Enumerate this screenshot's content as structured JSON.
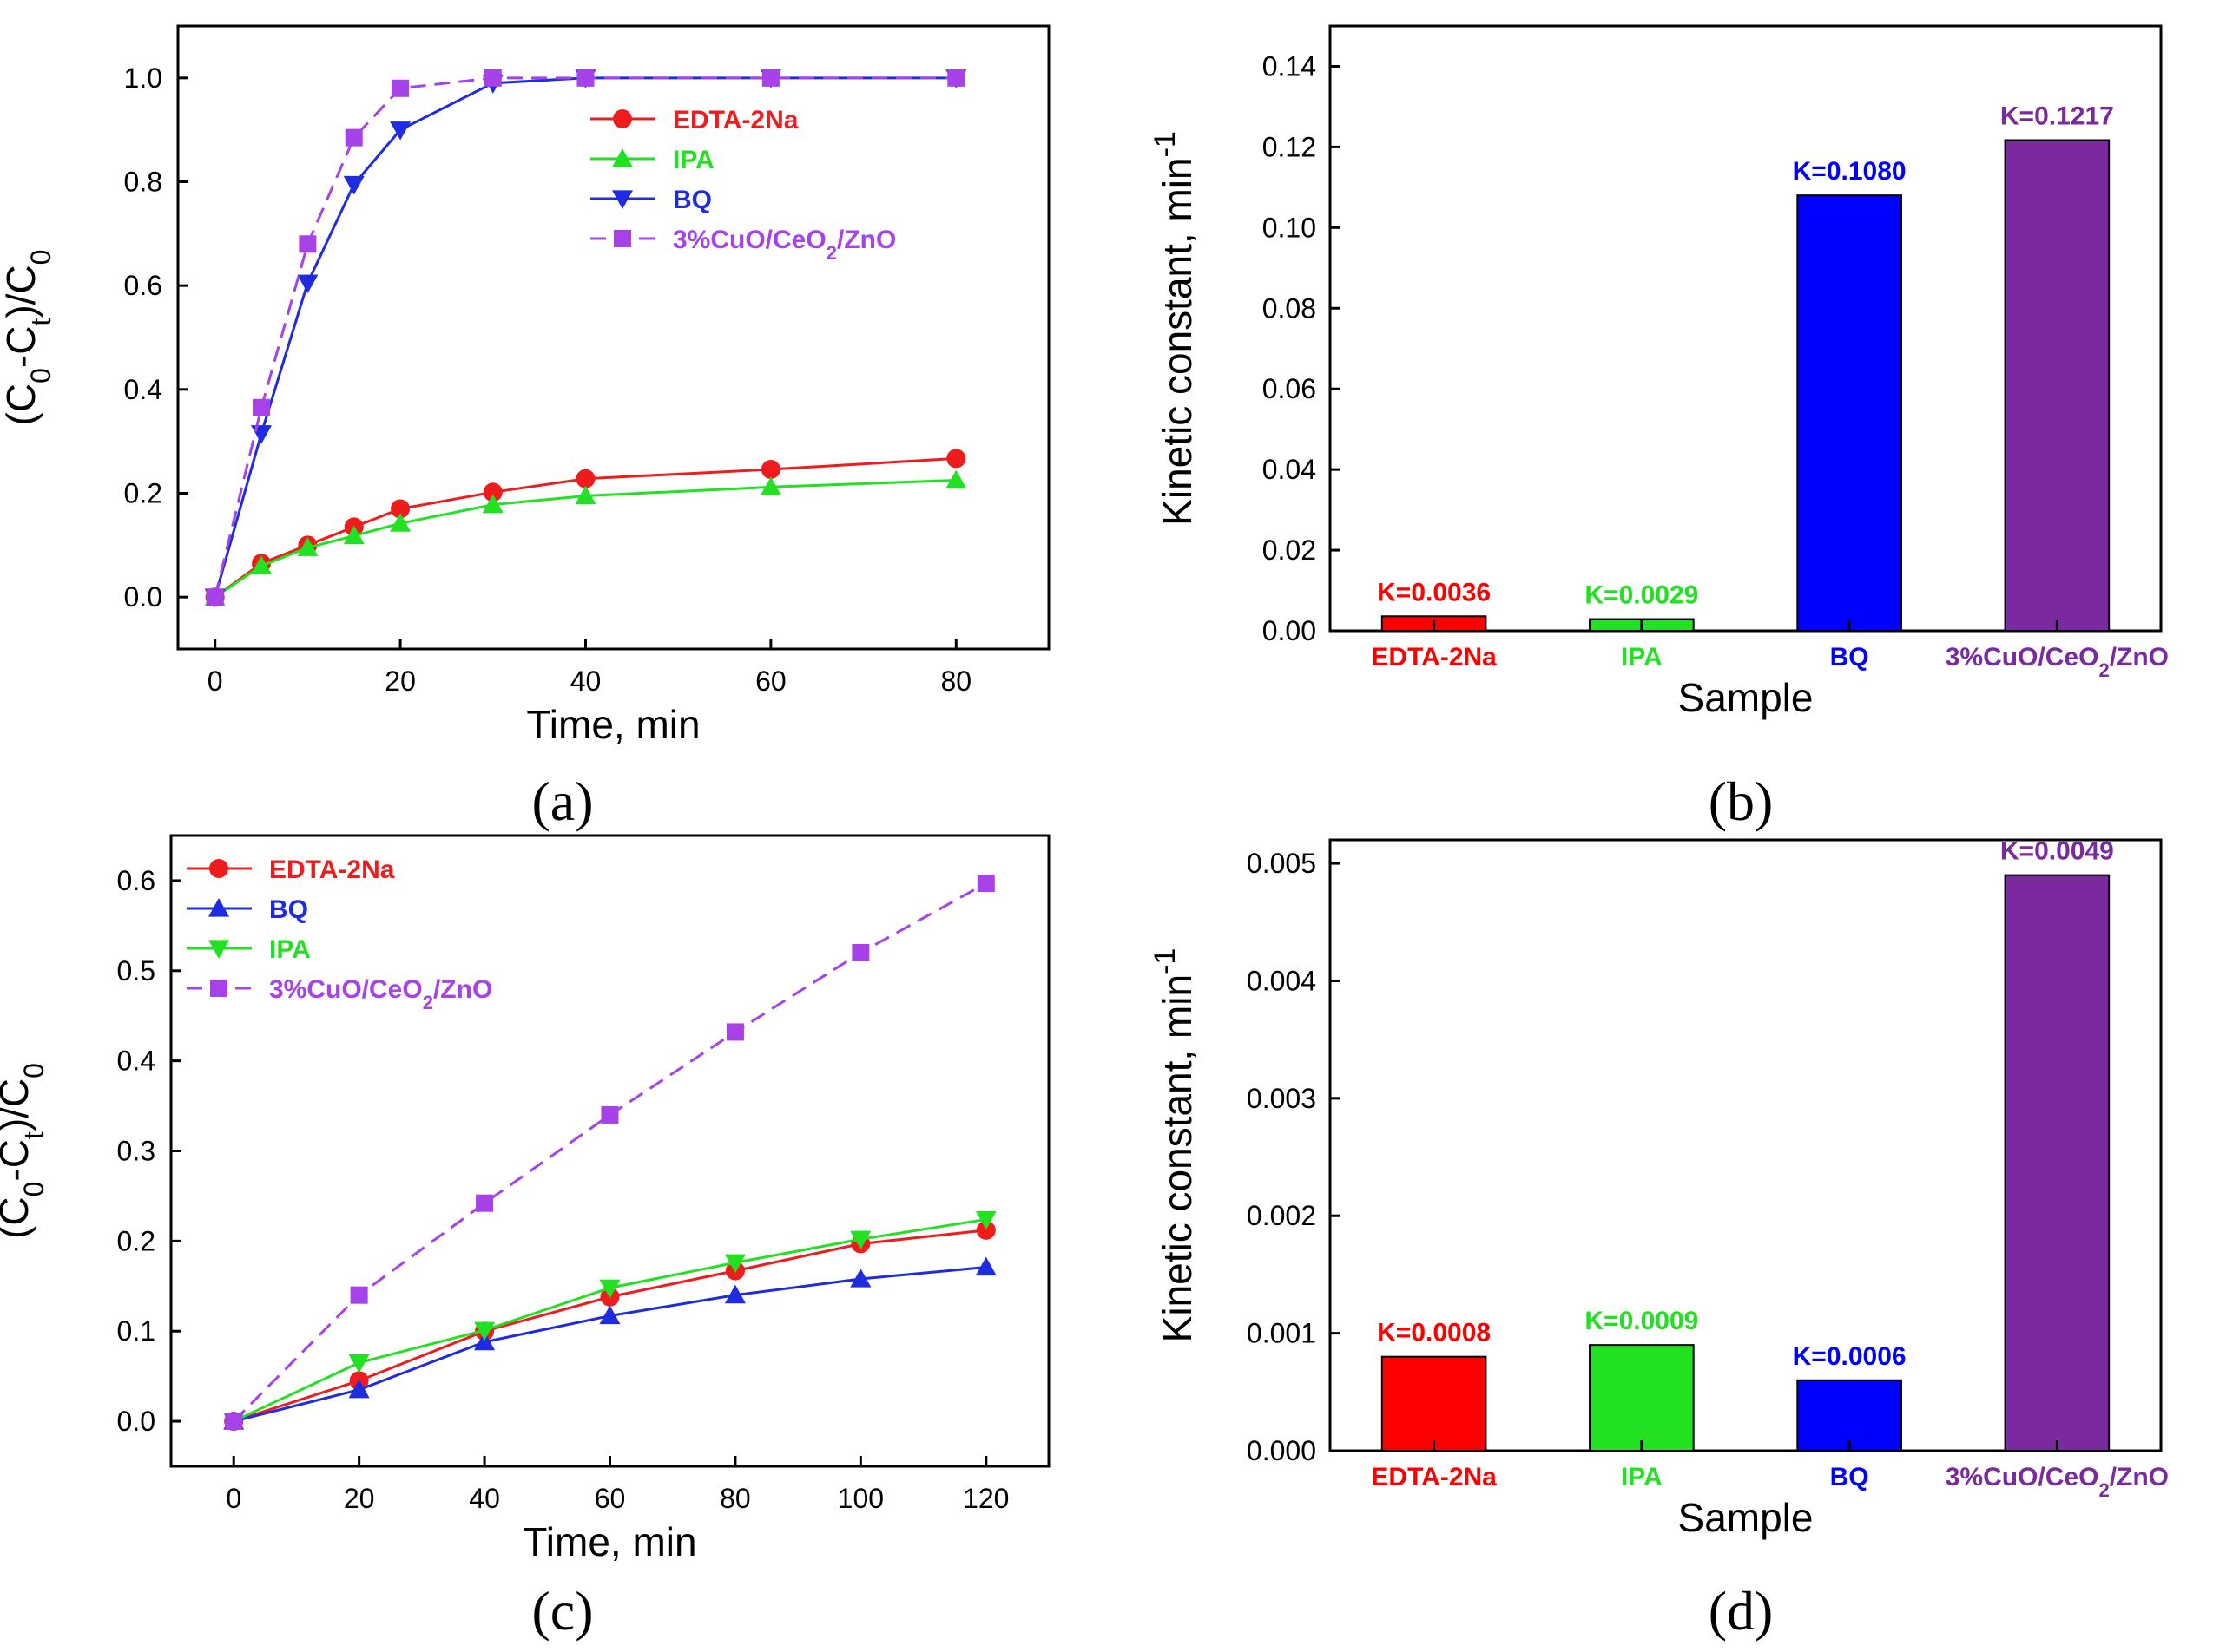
{
  "chart_data": [
    {
      "panel": "(a)",
      "type": "line",
      "xlabel": "Time, min",
      "ylabel_main": "(C",
      "ylabel_sub0": "0",
      "ylabel_mid": "-C",
      "ylabel_subt": "t",
      "ylabel_close": ")/C",
      "ylabel_sub0b": "0",
      "xlim": [
        -4,
        90
      ],
      "ylim": [
        -0.1,
        1.1
      ],
      "xticks": [
        0,
        20,
        40,
        60,
        80
      ],
      "yticks": [
        0.0,
        0.2,
        0.4,
        0.6,
        0.8,
        1.0
      ],
      "xtick_labels": [
        "0",
        "20",
        "40",
        "60",
        "80"
      ],
      "ytick_labels": [
        "0.0",
        "0.2",
        "0.4",
        "0.6",
        "0.8",
        "1.0"
      ],
      "series": [
        {
          "name": "EDTA-2Na",
          "color": "#ee1c1c",
          "marker": "circle",
          "dash": false,
          "x": [
            0,
            5,
            10,
            15,
            20,
            30,
            40,
            60,
            80
          ],
          "y": [
            0.0,
            0.065,
            0.1,
            0.135,
            0.17,
            0.202,
            0.228,
            0.246,
            0.267
          ]
        },
        {
          "name": "IPA",
          "color": "#22e022",
          "marker": "triangle-up",
          "dash": false,
          "x": [
            0,
            5,
            10,
            15,
            20,
            30,
            40,
            60,
            80
          ],
          "y": [
            0.0,
            0.06,
            0.095,
            0.118,
            0.142,
            0.178,
            0.195,
            0.212,
            0.225
          ]
        },
        {
          "name": "BQ",
          "color": "#1e2be0",
          "marker": "triangle-down",
          "dash": false,
          "x": [
            0,
            5,
            10,
            15,
            20,
            30,
            40,
            60,
            80
          ],
          "y": [
            0.0,
            0.315,
            0.605,
            0.795,
            0.9,
            0.99,
            1.0,
            1.0,
            1.0
          ]
        },
        {
          "name": "3%CuO/CeO2/ZnO",
          "label_pre": "3%CuO/CeO",
          "label_sub": "2",
          "label_post": "/ZnO",
          "color": "#a642e8",
          "marker": "square",
          "dash": true,
          "x": [
            0,
            5,
            10,
            15,
            20,
            30,
            40,
            60,
            80
          ],
          "y": [
            0.0,
            0.365,
            0.68,
            0.885,
            0.98,
            1.0,
            1.0,
            1.0,
            1.0
          ]
        }
      ],
      "legend_order": [
        0,
        1,
        2,
        3
      ],
      "legend_position": "top-right"
    },
    {
      "panel": "(b)",
      "type": "bar",
      "xlabel": "Sample",
      "ylabel": "Kinetic constant, min",
      "ylabel_sup": "-1",
      "ylim": [
        0,
        0.15
      ],
      "yticks": [
        0.0,
        0.02,
        0.04,
        0.06,
        0.08,
        0.1,
        0.12,
        0.14
      ],
      "ytick_labels": [
        "0.00",
        "0.02",
        "0.04",
        "0.06",
        "0.08",
        "0.10",
        "0.12",
        "0.14"
      ],
      "categories": [
        "EDTA-2Na",
        "IPA",
        "BQ",
        "3%CuO/CeO2/ZnO"
      ],
      "category_labels": [
        {
          "pre": "EDTA-2Na",
          "sub": "",
          "post": ""
        },
        {
          "pre": "IPA",
          "sub": "",
          "post": ""
        },
        {
          "pre": "BQ",
          "sub": "",
          "post": ""
        },
        {
          "pre": "3%CuO/CeO",
          "sub": "2",
          "post": "/ZnO"
        }
      ],
      "values": [
        0.0036,
        0.0029,
        0.108,
        0.1217
      ],
      "value_labels": [
        "K=0.0036",
        "K=0.0029",
        "K=0.1080",
        "K=0.1217"
      ],
      "colors": [
        "#ff0000",
        "#22e022",
        "#0000ff",
        "#7a2a9e"
      ]
    },
    {
      "panel": "(c)",
      "type": "line",
      "xlabel": "Time, min",
      "ylabel_main": "(C",
      "ylabel_sub0": "0",
      "ylabel_mid": "-C",
      "ylabel_subt": "t",
      "ylabel_close": ")/C",
      "ylabel_sub0b": "0",
      "xlim": [
        -10,
        130
      ],
      "ylim": [
        -0.05,
        0.65
      ],
      "xticks": [
        0,
        20,
        40,
        60,
        80,
        100,
        120
      ],
      "yticks": [
        0.0,
        0.1,
        0.2,
        0.3,
        0.4,
        0.5,
        0.6
      ],
      "xtick_labels": [
        "0",
        "20",
        "40",
        "60",
        "80",
        "100",
        "120"
      ],
      "ytick_labels": [
        "0.0",
        "0.1",
        "0.2",
        "0.3",
        "0.4",
        "0.5",
        "0.6"
      ],
      "series": [
        {
          "name": "EDTA-2Na",
          "color": "#ee1c1c",
          "marker": "circle",
          "dash": false,
          "x": [
            0,
            20,
            40,
            60,
            80,
            100,
            120
          ],
          "y": [
            0.0,
            0.045,
            0.1,
            0.138,
            0.167,
            0.197,
            0.212
          ]
        },
        {
          "name": "BQ",
          "color": "#1e2be0",
          "marker": "triangle-up",
          "dash": false,
          "x": [
            0,
            20,
            40,
            60,
            80,
            100,
            120
          ],
          "y": [
            0.0,
            0.035,
            0.088,
            0.117,
            0.14,
            0.158,
            0.171
          ]
        },
        {
          "name": "IPA",
          "color": "#22e022",
          "marker": "triangle-down",
          "dash": false,
          "x": [
            0,
            20,
            40,
            60,
            80,
            100,
            120
          ],
          "y": [
            0.0,
            0.065,
            0.101,
            0.148,
            0.176,
            0.202,
            0.224
          ]
        },
        {
          "name": "3%CuO/CeO2/ZnO",
          "label_pre": "3%CuO/CeO",
          "label_sub": "2",
          "label_post": "/ZnO",
          "color": "#a642e8",
          "marker": "square",
          "dash": true,
          "x": [
            0,
            20,
            40,
            60,
            80,
            100,
            120
          ],
          "y": [
            0.0,
            0.14,
            0.242,
            0.34,
            0.432,
            0.52,
            0.597
          ]
        }
      ],
      "legend_order": [
        0,
        1,
        2,
        3
      ],
      "legend_position": "top-left"
    },
    {
      "panel": "(d)",
      "type": "bar",
      "xlabel": "Sample",
      "ylabel": "Kinetic constant, min",
      "ylabel_sup": "-1",
      "ylim": [
        0,
        0.0052
      ],
      "yticks": [
        0.0,
        0.001,
        0.002,
        0.003,
        0.004,
        0.005
      ],
      "ytick_labels": [
        "0.000",
        "0.001",
        "0.002",
        "0.003",
        "0.004",
        "0.005"
      ],
      "categories": [
        "EDTA-2Na",
        "IPA",
        "BQ",
        "3%CuO/CeO2/ZnO"
      ],
      "category_labels": [
        {
          "pre": "EDTA-2Na",
          "sub": "",
          "post": ""
        },
        {
          "pre": "IPA",
          "sub": "",
          "post": ""
        },
        {
          "pre": "BQ",
          "sub": "",
          "post": ""
        },
        {
          "pre": "3%CuO/CeO",
          "sub": "2",
          "post": "/ZnO"
        }
      ],
      "values": [
        0.0008,
        0.0009,
        0.0006,
        0.0049
      ],
      "value_labels": [
        "K=0.0008",
        "K=0.0009",
        "K=0.0006",
        "K=0.0049"
      ],
      "colors": [
        "#ff0000",
        "#22e022",
        "#0000ff",
        "#7a2a9e"
      ]
    }
  ],
  "captions": [
    "(a)",
    "(b)",
    "(c)",
    "(d)"
  ]
}
